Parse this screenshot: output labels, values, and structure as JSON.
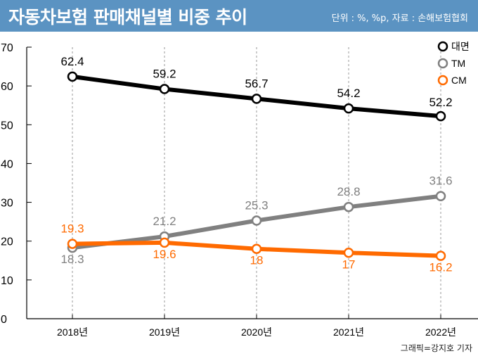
{
  "header": {
    "title": "자동차보험 판매채널별 비중 추이",
    "unit": "단위 : %, %p, 자료 : 손해보험협회",
    "bg_color": "#5b93c2"
  },
  "credit": "그래픽=강지호 기자",
  "chart_data": {
    "type": "line",
    "title": "자동차보험 판매채널별 비중 추이",
    "xlabel": "",
    "ylabel": "",
    "categories": [
      "2018년",
      "2019년",
      "2020년",
      "2021년",
      "2022년"
    ],
    "ylim": [
      0,
      70
    ],
    "yticks": [
      0,
      10,
      20,
      30,
      40,
      50,
      60,
      70
    ],
    "grid": "vertical-dashed",
    "legend": "top-right",
    "series": [
      {
        "name": "대면",
        "color": "#000000",
        "values": [
          62.4,
          59.2,
          56.7,
          54.2,
          52.2
        ],
        "labels": [
          "62.4",
          "59.2",
          "56.7",
          "54.2",
          "52.2"
        ]
      },
      {
        "name": "TM",
        "color": "#808080",
        "values": [
          18.3,
          21.2,
          25.3,
          28.8,
          31.6
        ],
        "labels": [
          "18.3",
          "21.2",
          "25.3",
          "28.8",
          "31.6"
        ]
      },
      {
        "name": "CM",
        "color": "#ff6a00",
        "values": [
          19.3,
          19.6,
          18,
          17,
          16.2
        ],
        "labels": [
          "19.3",
          "19.6",
          "18",
          "17",
          "16.2"
        ]
      }
    ]
  }
}
